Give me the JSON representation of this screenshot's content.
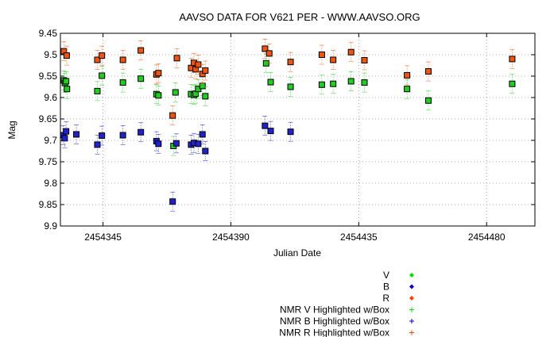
{
  "chart_data": {
    "type": "scatter",
    "title": "AAVSO DATA FOR V621 PER - WWW.AAVSO.ORG",
    "xlabel": "Julian Date",
    "ylabel": "Mag",
    "xlim": [
      2454330,
      2454497
    ],
    "ylim": [
      9.45,
      9.9
    ],
    "y_inverted": true,
    "grid": true,
    "legend_placement": "bottom-right",
    "x_ticks": [
      2454345,
      2454390,
      2454435,
      2454480
    ],
    "x_tick_labels": [
      "2454345",
      "2454390",
      "2454435",
      "2454480"
    ],
    "y_ticks": [
      9.45,
      9.5,
      9.55,
      9.6,
      9.65,
      9.7,
      9.75,
      9.8,
      9.85,
      9.9
    ],
    "y_tick_labels": [
      "9.45",
      "9.5",
      "9.55",
      "9.6",
      "9.65",
      "9.7",
      "9.75",
      "9.8",
      "9.85",
      "9.9"
    ],
    "legend": [
      {
        "label": "V",
        "color": "#00dd00",
        "marker": "diamond"
      },
      {
        "label": "B",
        "color": "#0000cc",
        "marker": "diamond"
      },
      {
        "label": "R",
        "color": "#ee4400",
        "marker": "diamond"
      },
      {
        "label": "NMR V Highlighted w/Box",
        "color": "#00dd00",
        "marker": "plus"
      },
      {
        "label": "NMR B Highlighted w/Box",
        "color": "#0000cc",
        "marker": "plus"
      },
      {
        "label": "NMR R Highlighted w/Box",
        "color": "#ee4400",
        "marker": "plus"
      }
    ],
    "series": [
      {
        "name": "V",
        "color": "#22cc22",
        "points": [
          [
            2454331.2,
            9.56
          ],
          [
            2454331.6,
            9.566
          ],
          [
            2454332.0,
            9.562
          ],
          [
            2454332.3,
            9.58
          ],
          [
            2454343.0,
            9.585
          ],
          [
            2454344.6,
            9.549
          ],
          [
            2454352.0,
            9.565
          ],
          [
            2454358.3,
            9.556
          ],
          [
            2454363.8,
            9.592
          ],
          [
            2454364.5,
            9.595
          ],
          [
            2454369.8,
            9.713
          ],
          [
            2454370.5,
            9.588
          ],
          [
            2454376.0,
            9.592
          ],
          [
            2454377.0,
            9.594
          ],
          [
            2454377.6,
            9.591
          ],
          [
            2454378.5,
            9.58
          ],
          [
            2454380.0,
            9.573
          ],
          [
            2454381.0,
            9.597
          ],
          [
            2454402.4,
            9.52
          ],
          [
            2454404.0,
            9.564
          ],
          [
            2454411.0,
            9.575
          ],
          [
            2454422.0,
            9.57
          ],
          [
            2454426.0,
            9.568
          ],
          [
            2454432.3,
            9.562
          ],
          [
            2454437.0,
            9.565
          ],
          [
            2454452.0,
            9.58
          ],
          [
            2454459.5,
            9.607
          ],
          [
            2454489.0,
            9.568
          ]
        ]
      },
      {
        "name": "B",
        "color": "#2222cc",
        "points": [
          [
            2454331.0,
            9.688
          ],
          [
            2454331.5,
            9.695
          ],
          [
            2454332.0,
            9.679
          ],
          [
            2454335.6,
            9.686
          ],
          [
            2454343.0,
            9.71
          ],
          [
            2454344.6,
            9.689
          ],
          [
            2454352.0,
            9.688
          ],
          [
            2454358.3,
            9.681
          ],
          [
            2454363.8,
            9.702
          ],
          [
            2454364.5,
            9.708
          ],
          [
            2454369.5,
            9.843
          ],
          [
            2454370.8,
            9.707
          ],
          [
            2454376.0,
            9.71
          ],
          [
            2454377.0,
            9.706
          ],
          [
            2454378.5,
            9.708
          ],
          [
            2454380.0,
            9.686
          ],
          [
            2454381.0,
            9.725
          ],
          [
            2454402.0,
            9.666
          ],
          [
            2454404.0,
            9.678
          ],
          [
            2454411.0,
            9.68
          ]
        ]
      },
      {
        "name": "R",
        "color": "#ee5511",
        "points": [
          [
            2454331.2,
            9.492
          ],
          [
            2454332.2,
            9.502
          ],
          [
            2454343.0,
            9.512
          ],
          [
            2454344.6,
            9.502
          ],
          [
            2454352.0,
            9.512
          ],
          [
            2454358.3,
            9.49
          ],
          [
            2454363.8,
            9.546
          ],
          [
            2454364.5,
            9.543
          ],
          [
            2454369.5,
            9.642
          ],
          [
            2454371.0,
            9.508
          ],
          [
            2454376.0,
            9.531
          ],
          [
            2454377.0,
            9.519
          ],
          [
            2454377.6,
            9.534
          ],
          [
            2454378.5,
            9.523
          ],
          [
            2454380.0,
            9.545
          ],
          [
            2454381.0,
            9.537
          ],
          [
            2454402.0,
            9.486
          ],
          [
            2454403.5,
            9.497
          ],
          [
            2454411.0,
            9.517
          ],
          [
            2454422.0,
            9.5
          ],
          [
            2454426.0,
            9.512
          ],
          [
            2454432.3,
            9.494
          ],
          [
            2454437.0,
            9.513
          ],
          [
            2454452.0,
            9.548
          ],
          [
            2454459.5,
            9.539
          ],
          [
            2454489.0,
            9.51
          ]
        ]
      }
    ]
  }
}
